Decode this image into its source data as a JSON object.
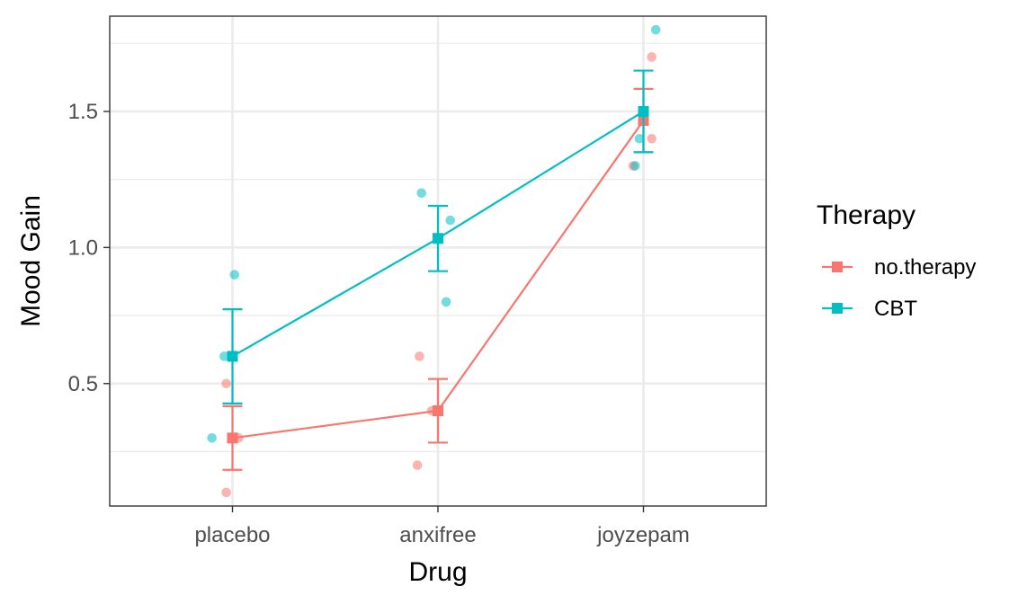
{
  "chart_data": {
    "type": "line",
    "title": "",
    "xlabel": "Drug",
    "ylabel": "Mood Gain",
    "categories": [
      "placebo",
      "anxifree",
      "joyzepam"
    ],
    "ylim": [
      0.05,
      1.85
    ],
    "y_ticks": [
      0.5,
      1.0,
      1.5
    ],
    "y_tick_labels": [
      "0.5",
      "1.0",
      "1.5"
    ],
    "grid": true,
    "legend": {
      "title": "Therapy",
      "placement": "right"
    },
    "series": [
      {
        "name": "no.therapy",
        "color": "#F8766D",
        "means": [
          0.3,
          0.4,
          1.4667
        ],
        "error_low": [
          0.183,
          0.283,
          1.35
        ],
        "error_high": [
          0.417,
          0.517,
          1.583
        ],
        "points": [
          {
            "category": "placebo",
            "jitter": -0.03,
            "y": 0.5
          },
          {
            "category": "placebo",
            "jitter": 0.03,
            "y": 0.3
          },
          {
            "category": "placebo",
            "jitter": -0.03,
            "y": 0.1
          },
          {
            "category": "anxifree",
            "jitter": -0.09,
            "y": 0.6
          },
          {
            "category": "anxifree",
            "jitter": -0.03,
            "y": 0.4
          },
          {
            "category": "anxifree",
            "jitter": -0.1,
            "y": 0.2
          },
          {
            "category": "joyzepam",
            "jitter": -0.05,
            "y": 1.3
          },
          {
            "category": "joyzepam",
            "jitter": 0.04,
            "y": 1.7
          },
          {
            "category": "joyzepam",
            "jitter": 0.04,
            "y": 1.4
          }
        ]
      },
      {
        "name": "CBT",
        "color": "#00BFC4",
        "means": [
          0.6,
          1.0333,
          1.5
        ],
        "error_low": [
          0.427,
          0.913,
          1.35
        ],
        "error_high": [
          0.773,
          1.153,
          1.65
        ],
        "points": [
          {
            "category": "placebo",
            "jitter": 0.01,
            "y": 0.9
          },
          {
            "category": "placebo",
            "jitter": -0.04,
            "y": 0.6
          },
          {
            "category": "placebo",
            "jitter": -0.1,
            "y": 0.3
          },
          {
            "category": "anxifree",
            "jitter": -0.08,
            "y": 1.2
          },
          {
            "category": "anxifree",
            "jitter": 0.06,
            "y": 1.1
          },
          {
            "category": "anxifree",
            "jitter": 0.04,
            "y": 0.8
          },
          {
            "category": "joyzepam",
            "jitter": 0.06,
            "y": 1.8
          },
          {
            "category": "joyzepam",
            "jitter": -0.02,
            "y": 1.4
          },
          {
            "category": "joyzepam",
            "jitter": -0.04,
            "y": 1.3
          }
        ]
      }
    ]
  }
}
